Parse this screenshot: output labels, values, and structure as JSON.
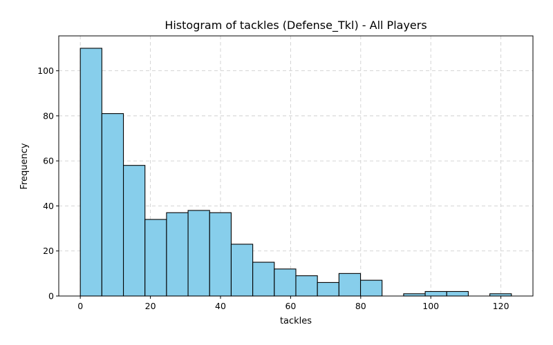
{
  "chart_data": {
    "type": "bar",
    "title": "Histogram of tackles (Defense_Tkl) - All Players",
    "xlabel": "tackles",
    "ylabel": "Frequency",
    "bin_start": 0,
    "bin_width": 6.15,
    "values": [
      110,
      81,
      58,
      34,
      37,
      38,
      37,
      23,
      15,
      12,
      9,
      6,
      10,
      7,
      0,
      1,
      2,
      2,
      0,
      1
    ],
    "xlim": [
      -6.15,
      129.15
    ],
    "ylim": [
      0,
      115.5
    ],
    "xticks": [
      0,
      20,
      40,
      60,
      80,
      100,
      120
    ],
    "yticks": [
      0,
      20,
      40,
      60,
      80,
      100
    ],
    "grid": true,
    "colors": {
      "bar_fill": "#87CEEB",
      "bar_edge": "#000000",
      "grid": "#cfcfcf"
    }
  }
}
